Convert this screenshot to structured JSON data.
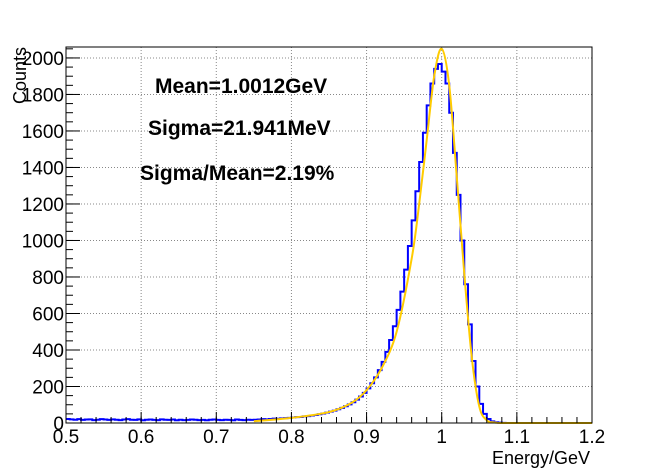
{
  "chart_data": {
    "type": "bar",
    "subtype": "histogram-with-fit",
    "xlabel": "Energy/GeV",
    "ylabel": "Counts",
    "xlim": [
      0.5,
      1.2
    ],
    "ylim": [
      0,
      2060
    ],
    "grid": true,
    "x_ticks": [
      "0.5",
      "0.6",
      "0.7",
      "0.8",
      "0.9",
      "1",
      "1.1",
      "1.2"
    ],
    "y_ticks": [
      "0",
      "200",
      "400",
      "600",
      "800",
      "1000",
      "1200",
      "1400",
      "1600",
      "1800",
      "2000"
    ],
    "annotations": [
      "Mean=1.0012GeV",
      "Sigma=21.941MeV",
      "Sigma/Mean=2.19%"
    ],
    "histogram": {
      "color": "#0000ff",
      "bin_start": 0.5,
      "bin_width": 0.005,
      "values": [
        22,
        20,
        18,
        21,
        17,
        19,
        20,
        16,
        18,
        21,
        19,
        17,
        20,
        18,
        16,
        19,
        21,
        18,
        17,
        20,
        15,
        18,
        19,
        17,
        16,
        20,
        18,
        17,
        19,
        15,
        18,
        16,
        17,
        19,
        18,
        16,
        17,
        15,
        18,
        19,
        17,
        16,
        18,
        17,
        15,
        19,
        17,
        16,
        18,
        17,
        18,
        19,
        21,
        20,
        22,
        24,
        23,
        25,
        27,
        28,
        30,
        32,
        33,
        36,
        38,
        41,
        44,
        48,
        52,
        57,
        62,
        68,
        75,
        83,
        92,
        102,
        114,
        128,
        145,
        165,
        190,
        218,
        250,
        290,
        335,
        390,
        455,
        530,
        620,
        720,
        840,
        970,
        1110,
        1270,
        1430,
        1590,
        1740,
        1860,
        1940,
        1967,
        1925,
        1860,
        1700,
        1480,
        1250,
        1000,
        760,
        540,
        340,
        200,
        105,
        50,
        22,
        9,
        4,
        2,
        1,
        0,
        0,
        0,
        0,
        0,
        0,
        0,
        0,
        0,
        0,
        0,
        0,
        0,
        0,
        0,
        0,
        0,
        0,
        0,
        0,
        0,
        0,
        0
      ]
    },
    "fit": {
      "color": "#ffcc00",
      "x": [
        0.75,
        0.8,
        0.85,
        0.88,
        0.9,
        0.92,
        0.94,
        0.96,
        0.97,
        0.98,
        0.99,
        1.0,
        1.01,
        1.02,
        1.03,
        1.04,
        1.05,
        1.06,
        1.07,
        1.08,
        1.1,
        1.2
      ],
      "y": [
        10,
        28,
        60,
        110,
        180,
        300,
        500,
        900,
        1200,
        1550,
        1900,
        2050,
        1850,
        1350,
        820,
        360,
        90,
        15,
        3,
        0,
        0,
        0
      ]
    }
  }
}
